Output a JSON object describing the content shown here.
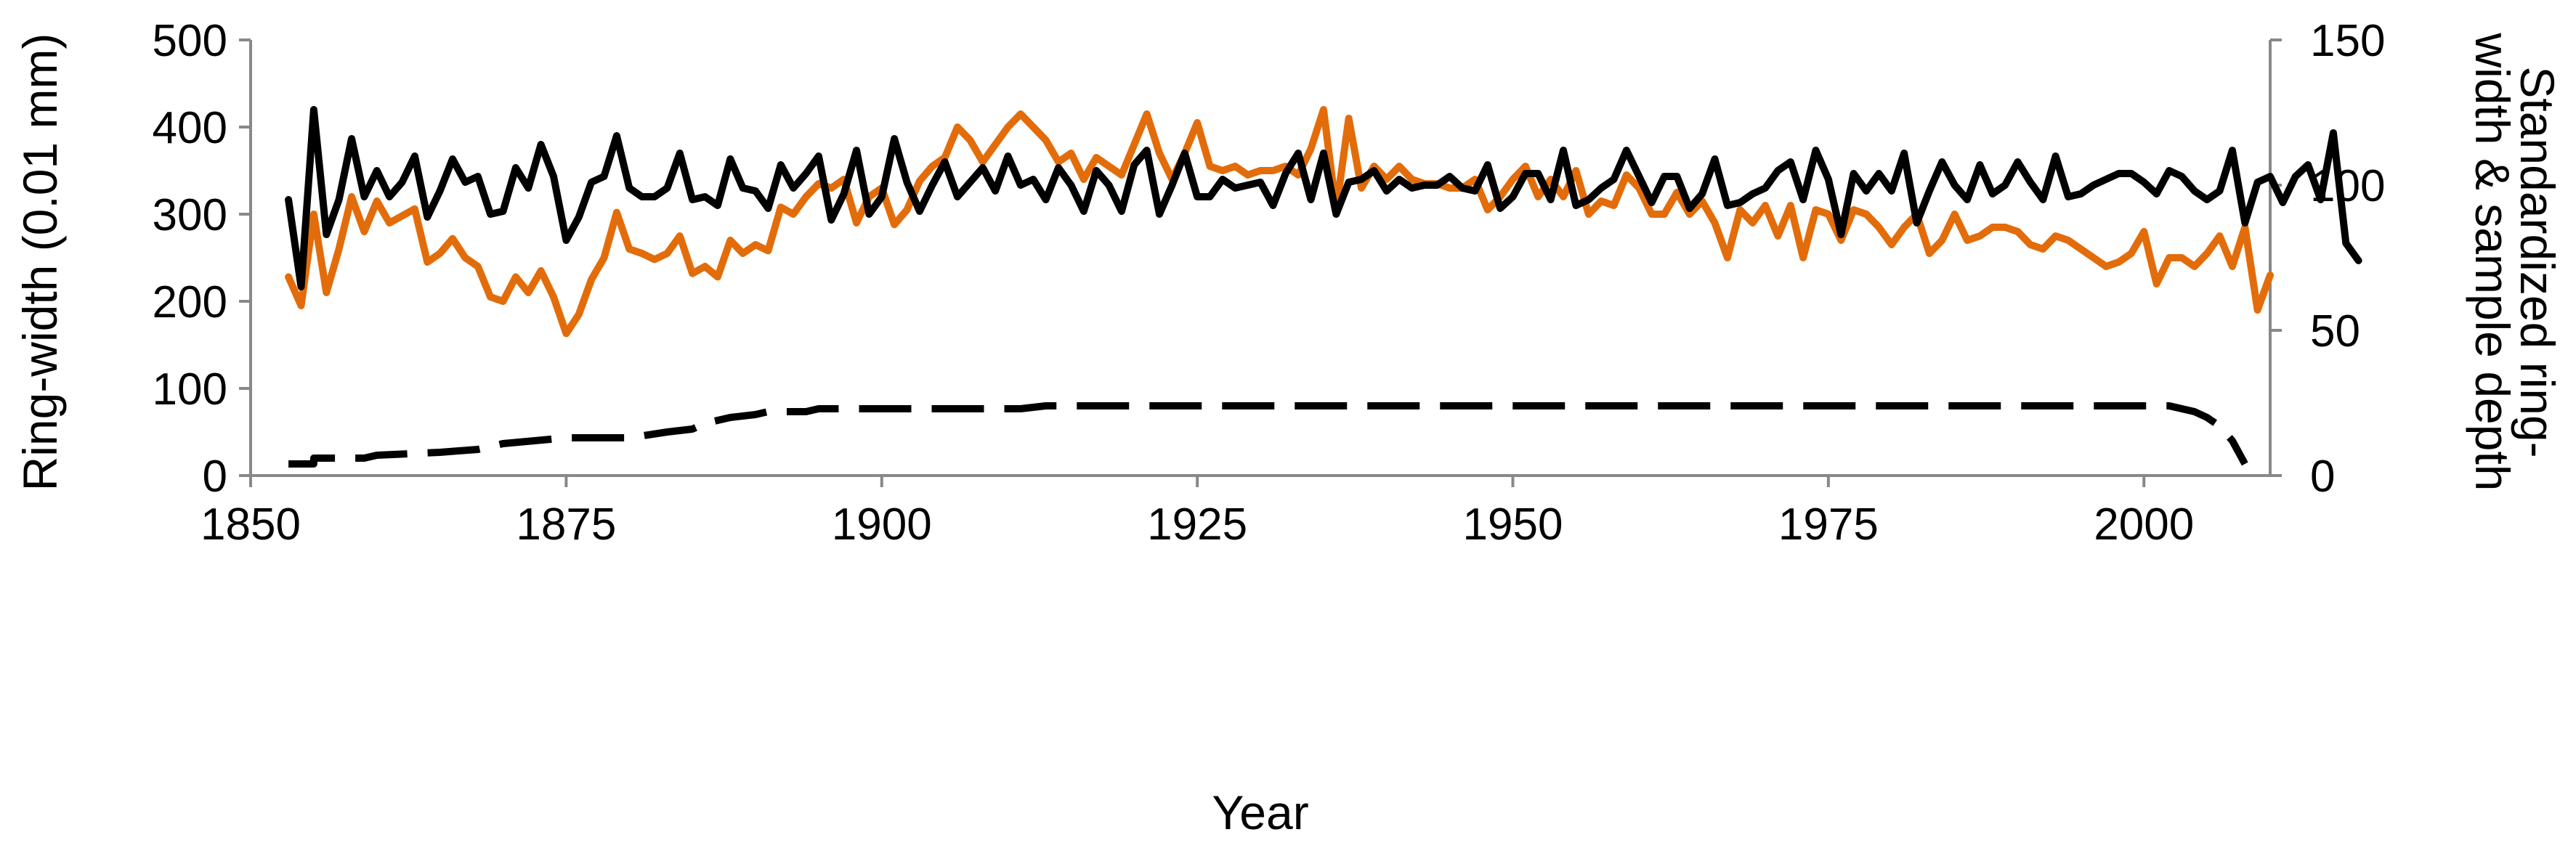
{
  "chart_data": {
    "type": "line",
    "xlabel": "Year",
    "ylabel": "Ring-width (0.01 mm)",
    "ylabel2_line1": "Standardized ring-",
    "ylabel2_line2": "width & sample depth",
    "xlim": [
      1850,
      2010
    ],
    "ylim": [
      0,
      500
    ],
    "y2lim": [
      0,
      150
    ],
    "xticks": [
      1850,
      1875,
      1900,
      1925,
      1950,
      1975,
      2000
    ],
    "xtick_labels": [
      "1850",
      "1875",
      "1900",
      "1925",
      "1950",
      "1975",
      "2000"
    ],
    "yticks": [
      0,
      100,
      200,
      300,
      400,
      500
    ],
    "ytick_labels": [
      "0",
      "100",
      "200",
      "300",
      "400",
      "500"
    ],
    "y2ticks": [
      0,
      50,
      100,
      150
    ],
    "y2tick_labels": [
      "0",
      "50",
      "100",
      "150"
    ],
    "grid": false,
    "legend": "none",
    "series": [
      {
        "axis": "left",
        "color": "#E36C0A",
        "style": "solid",
        "start_year": 1853,
        "values": [
          228,
          195,
          300,
          210,
          260,
          320,
          280,
          315,
          290,
          298,
          306,
          245,
          255,
          272,
          250,
          240,
          205,
          200,
          228,
          210,
          235,
          205,
          163,
          185,
          225,
          250,
          302,
          260,
          255,
          248,
          255,
          275,
          232,
          240,
          228,
          270,
          255,
          265,
          258,
          308,
          300,
          320,
          335,
          330,
          340,
          290,
          320,
          330,
          288,
          305,
          338,
          355,
          365,
          400,
          385,
          360,
          380,
          400,
          415,
          400,
          385,
          360,
          370,
          340,
          365,
          355,
          345,
          380,
          415,
          370,
          340,
          370,
          405,
          355,
          350,
          355,
          345,
          350,
          350,
          355,
          345,
          375,
          420,
          305,
          410,
          330,
          355,
          340,
          355,
          340,
          335,
          335,
          330,
          330,
          340,
          305,
          320,
          340,
          355,
          320,
          340,
          320,
          350,
          300,
          315,
          310,
          345,
          330,
          300,
          300,
          325,
          300,
          315,
          290,
          250,
          305,
          290,
          310,
          275,
          310,
          250,
          305,
          300,
          270,
          305,
          300,
          285,
          265,
          285,
          300,
          255,
          270,
          300,
          270,
          275,
          285,
          285,
          280,
          265,
          260,
          275,
          270,
          260,
          250,
          240,
          245,
          255,
          280,
          220,
          250,
          250,
          240,
          255,
          275,
          240,
          285,
          190,
          230
        ]
      },
      {
        "axis": "right",
        "color": "#000000",
        "style": "solid",
        "start_year": 1853,
        "values": [
          95,
          65,
          126,
          83,
          95,
          116,
          96,
          105,
          96,
          101,
          110,
          89,
          98,
          109,
          101,
          103,
          90,
          91,
          106,
          99,
          114,
          103,
          81,
          89,
          101,
          103,
          117,
          99,
          96,
          96,
          99,
          111,
          95,
          96,
          93,
          109,
          99,
          98,
          92,
          107,
          99,
          104,
          110,
          88,
          97,
          112,
          90,
          96,
          116,
          101,
          91,
          100,
          108,
          96,
          101,
          106,
          98,
          110,
          100,
          102,
          95,
          106,
          100,
          91,
          105,
          100,
          91,
          107,
          112,
          90,
          100,
          111,
          96,
          96,
          102,
          99,
          100,
          101,
          93,
          104,
          111,
          95,
          111,
          90,
          101,
          102,
          105,
          98,
          102,
          99,
          100,
          100,
          103,
          99,
          98,
          107,
          92,
          96,
          104,
          104,
          95,
          112,
          93,
          95,
          99,
          102,
          112,
          103,
          94,
          103,
          103,
          92,
          97,
          109,
          93,
          94,
          97,
          99,
          105,
          108,
          95,
          112,
          102,
          83,
          104,
          98,
          104,
          98,
          111,
          87,
          98,
          108,
          100,
          95,
          107,
          97,
          100,
          108,
          101,
          95,
          110,
          96,
          97,
          100,
          102,
          104,
          104,
          101,
          97,
          105,
          103,
          98,
          95,
          98,
          112,
          87,
          101,
          103,
          94,
          103,
          107,
          95,
          118,
          80,
          74
        ]
      },
      {
        "axis": "right",
        "color": "#000000",
        "style": "dashed",
        "x": [
          1853,
          1855,
          1855,
          1857,
          1859,
          1860,
          1865,
          1868,
          1870,
          1875,
          1880,
          1883,
          1885,
          1886,
          1887,
          1888,
          1890,
          1891,
          1894,
          1895,
          1896,
          1900,
          1905,
          1910,
          1911,
          1913,
          2000,
          2002,
          2004,
          2005,
          2006,
          2007,
          2008
        ],
        "values": [
          4,
          4,
          6,
          6,
          6,
          7,
          8,
          9,
          11,
          13,
          13,
          15,
          16,
          18,
          19,
          20,
          21,
          22,
          22,
          23,
          23,
          23,
          23,
          23,
          23,
          24,
          24,
          24,
          22,
          20,
          17,
          12,
          4
        ]
      }
    ]
  }
}
